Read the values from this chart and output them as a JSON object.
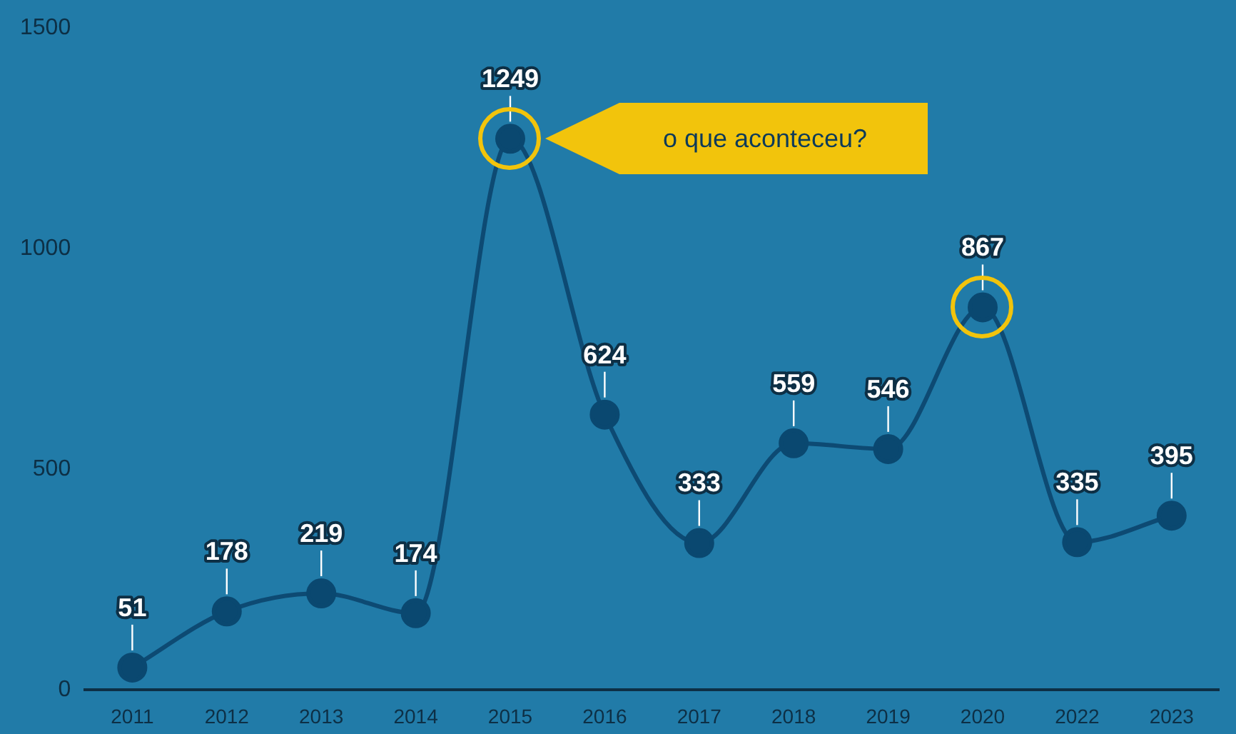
{
  "chart_data": {
    "type": "line",
    "categories": [
      "2011",
      "2012",
      "2013",
      "2014",
      "2015",
      "2016",
      "2017",
      "2018",
      "2019",
      "2020",
      "2022",
      "2023"
    ],
    "series": [
      {
        "color": "#0d4a73",
        "values": [
          51,
          178,
          219,
          174,
          1249,
          624,
          333,
          559,
          546,
          867,
          335,
          395
        ]
      }
    ],
    "ylim": [
      0,
      1500
    ],
    "yticks": [
      0,
      500,
      1000,
      1500
    ],
    "grid": false,
    "legend": false,
    "marker": "circle",
    "line_style": "solid",
    "data_labels": true,
    "annotations": [
      "o que aconteceu?"
    ]
  }
}
